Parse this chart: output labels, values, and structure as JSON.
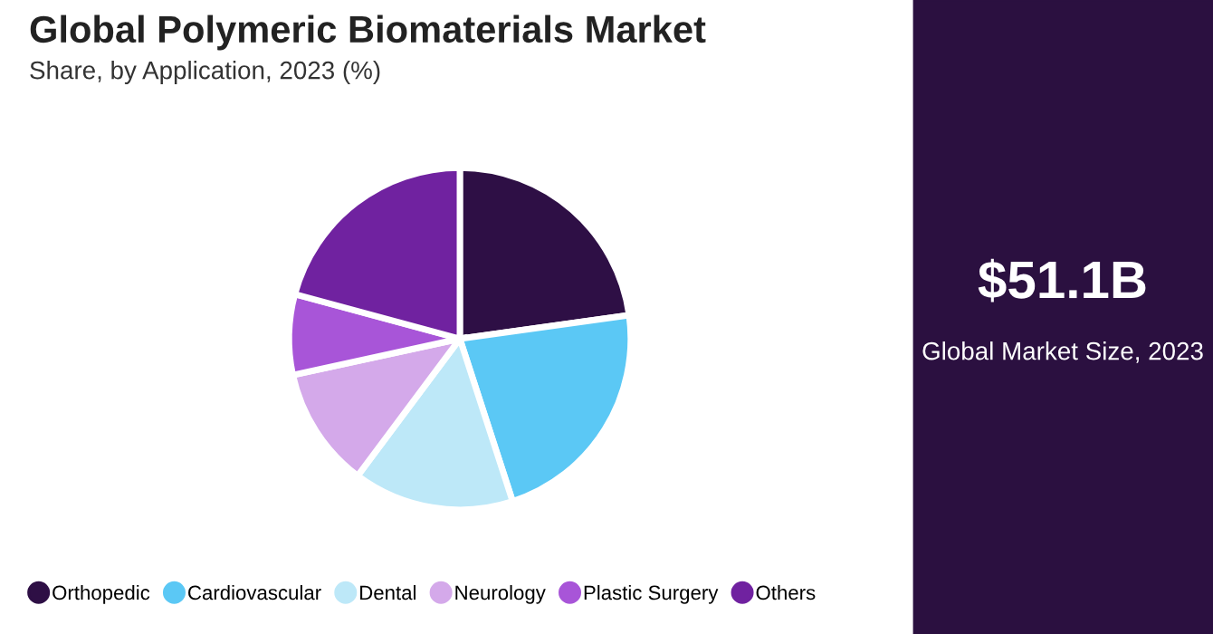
{
  "chart_data": {
    "type": "pie",
    "title": "Global Polymeric Biomaterials Market",
    "subtitle": "Share, by Application, 2023 (%)",
    "categories": [
      "Orthopedic",
      "Cardiovascular",
      "Dental",
      "Neurology",
      "Plastic Surgery",
      "Others"
    ],
    "values": [
      22.8,
      22.2,
      15.2,
      11.4,
      7.6,
      20.8
    ],
    "colors": [
      "#2e0f45",
      "#5bc8f5",
      "#bde8f8",
      "#d4a9ea",
      "#a855d8",
      "#7022a0"
    ],
    "legend": "bottom",
    "annotations": [
      "$51.1B",
      "Global Market Size, 2023"
    ]
  }
}
